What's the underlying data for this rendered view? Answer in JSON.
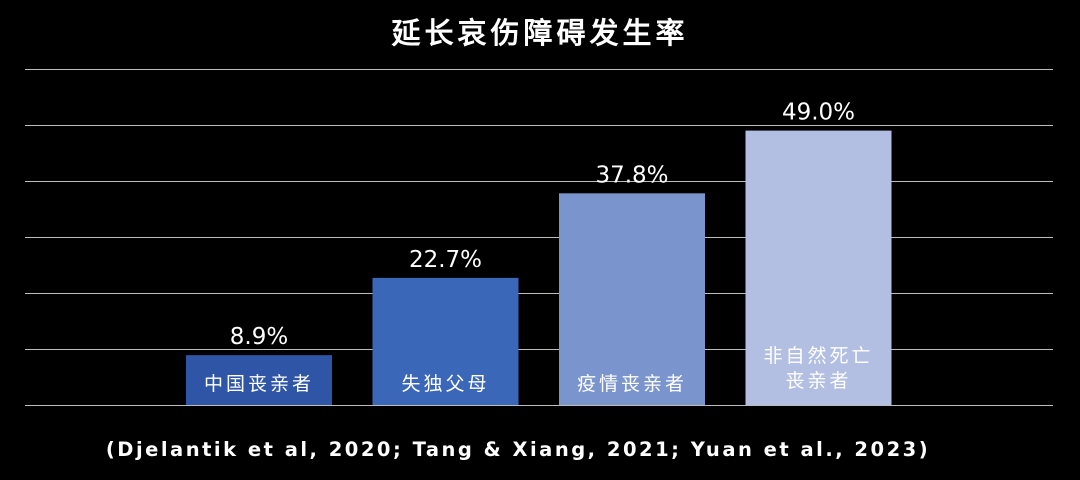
{
  "chart_data": {
    "type": "bar",
    "title": "延长哀伤障碍发生率",
    "categories": [
      [
        "中国丧亲者"
      ],
      [
        "失独父母"
      ],
      [
        "疫情丧亲者"
      ],
      [
        "非自然死亡",
        "丧亲者"
      ]
    ],
    "values": [
      8.9,
      22.7,
      37.8,
      49.0
    ],
    "value_labels": [
      "8.9%",
      "22.7%",
      "37.8%",
      "49.0%"
    ],
    "colors": [
      "#2f56a6",
      "#3b67b8",
      "#7a95cd",
      "#b3bfe2"
    ],
    "ylim": [
      0,
      60
    ],
    "grid": true,
    "xlabel": "",
    "ylabel": "",
    "legend": "none",
    "source": "(Djelantik et al, 2020; Tang & Xiang, 2021; Yuan et al., 2023)"
  }
}
